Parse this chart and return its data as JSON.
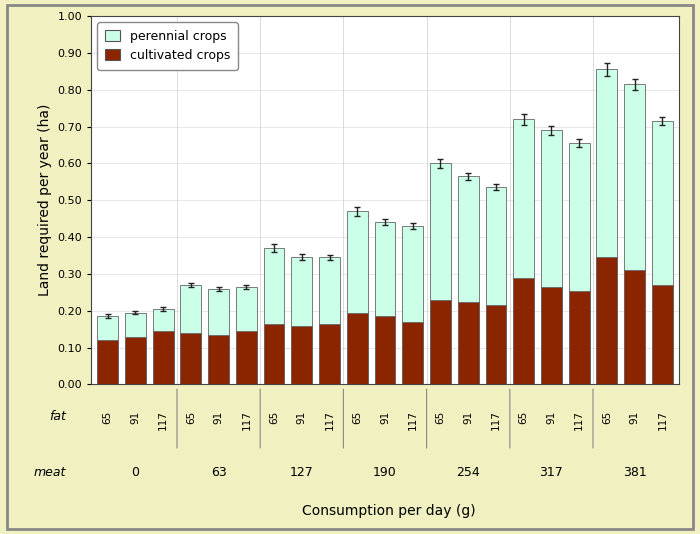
{
  "background_color": "#f0f0c0",
  "plot_background": "#ffffff",
  "ylabel": "Land required per year (ha)",
  "xlabel": "Consumption per day (g)",
  "ylim": [
    0.0,
    1.0
  ],
  "yticks": [
    0.0,
    0.1,
    0.2,
    0.3,
    0.4,
    0.5,
    0.6,
    0.7,
    0.8,
    0.9,
    1.0
  ],
  "fat_labels": [
    "65",
    "91",
    "117",
    "65",
    "91",
    "117",
    "65",
    "91",
    "117",
    "65",
    "91",
    "117",
    "65",
    "91",
    "117",
    "65",
    "91",
    "117",
    "65",
    "91",
    "117"
  ],
  "meat_labels": [
    "0",
    "63",
    "127",
    "190",
    "254",
    "317",
    "381"
  ],
  "perennial_total": [
    0.185,
    0.195,
    0.205,
    0.27,
    0.26,
    0.265,
    0.37,
    0.345,
    0.345,
    0.47,
    0.44,
    0.43,
    0.6,
    0.565,
    0.535,
    0.72,
    0.69,
    0.655,
    0.855,
    0.815,
    0.715
  ],
  "cultivated": [
    0.12,
    0.13,
    0.145,
    0.14,
    0.135,
    0.145,
    0.165,
    0.16,
    0.165,
    0.195,
    0.185,
    0.17,
    0.23,
    0.225,
    0.215,
    0.29,
    0.265,
    0.255,
    0.345,
    0.31,
    0.27
  ],
  "error": [
    0.005,
    0.005,
    0.005,
    0.005,
    0.005,
    0.005,
    0.01,
    0.008,
    0.007,
    0.012,
    0.008,
    0.007,
    0.012,
    0.01,
    0.008,
    0.015,
    0.012,
    0.01,
    0.018,
    0.015,
    0.01
  ],
  "bar_color_cultivated": "#8B2500",
  "bar_color_perennial": "#ccffe8",
  "bar_edge_color": "#666666",
  "error_color": "#222222",
  "legend_perennial": "perennial crops",
  "legend_cultivated": "cultivated crops"
}
